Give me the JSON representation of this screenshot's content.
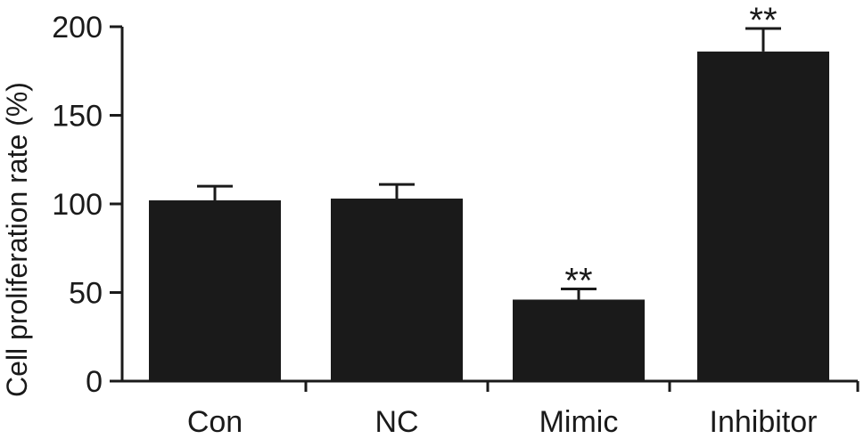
{
  "chart_data": {
    "type": "bar",
    "title": "",
    "xlabel": "",
    "ylabel": "Cell proliferation rate (%)",
    "ylim": [
      0,
      200
    ],
    "yticks": [
      0,
      50,
      100,
      150,
      200
    ],
    "categories": [
      "Con",
      "NC",
      "Mimic",
      "Inhibitor"
    ],
    "values": [
      102,
      103,
      46,
      186
    ],
    "errors": [
      8,
      8,
      6,
      13
    ],
    "annotations": [
      "",
      "",
      "**",
      "**"
    ],
    "bar_color": "#1a1a1a",
    "grid": false,
    "legend": "none"
  }
}
